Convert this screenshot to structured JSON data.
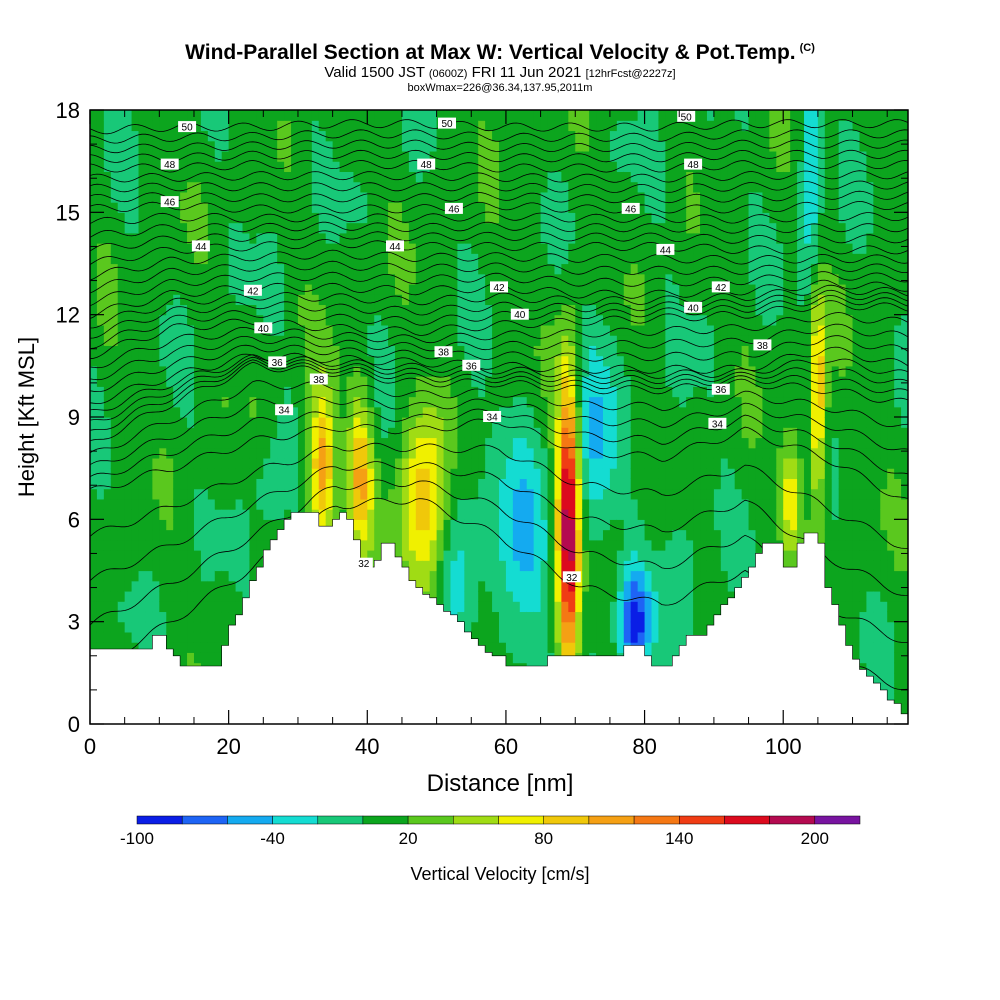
{
  "header": {
    "title": "Wind-Parallel Section at Max W: Vertical Velocity & Pot.Temp.",
    "copyright": "(C)",
    "subtitle_valid": "Valid 1500 JST",
    "subtitle_zulu": "(0600Z)",
    "subtitle_date": "FRI 11 Jun 2021",
    "subtitle_fcst": "[12hrFcst@2227z]",
    "subtitle_box": "boxWmax=226@36.34,137.95,2011m"
  },
  "chart_data": {
    "type": "heatmap",
    "xlabel": "Distance [nm]",
    "ylabel": "Height [Kft MSL]",
    "xlim": [
      0,
      118
    ],
    "ylim": [
      0,
      18
    ],
    "x_ticks": [
      0,
      20,
      40,
      60,
      80,
      100
    ],
    "y_ticks": [
      0,
      3,
      6,
      9,
      12,
      15,
      18
    ],
    "x_tick_labels": [
      "0",
      "20",
      "40",
      "60",
      "80",
      "100"
    ],
    "y_tick_labels": [
      "0",
      "3",
      "6",
      "9",
      "12",
      "15",
      "18"
    ],
    "terrain": {
      "x": [
        0,
        8,
        9,
        10,
        11,
        12,
        13,
        15,
        18,
        19,
        20,
        21,
        22,
        23,
        24,
        25,
        26,
        27,
        28,
        29,
        30,
        33,
        34,
        35,
        36,
        37,
        38,
        39,
        40,
        41,
        42,
        43,
        44,
        45,
        46,
        47,
        48,
        49,
        50,
        51,
        52,
        53,
        54,
        55,
        56,
        57,
        58,
        60,
        62,
        64,
        66,
        68,
        70,
        72,
        74,
        76,
        77,
        79,
        80,
        81,
        82,
        83,
        84,
        85,
        86,
        87,
        88,
        89,
        90,
        91,
        92,
        93,
        94,
        95,
        96,
        97,
        98,
        99,
        100,
        101,
        102,
        103,
        104,
        105,
        106,
        107,
        108,
        109,
        110,
        111,
        112,
        113,
        114,
        115,
        116,
        117,
        118
      ],
      "height_kft": [
        2.2,
        2.2,
        2.6,
        2.6,
        2.2,
        2.0,
        1.7,
        1.7,
        1.7,
        2.3,
        2.9,
        3.2,
        3.7,
        4.2,
        4.6,
        5.1,
        5.4,
        5.7,
        6.0,
        6.2,
        6.2,
        5.8,
        5.8,
        6.0,
        6.2,
        6.0,
        5.4,
        4.8,
        4.6,
        4.8,
        5.3,
        5.3,
        4.9,
        4.6,
        4.2,
        4.0,
        3.8,
        3.7,
        3.5,
        3.3,
        3.2,
        3.0,
        2.7,
        2.5,
        2.3,
        2.1,
        2.0,
        1.7,
        1.7,
        1.7,
        2.0,
        2.0,
        2.0,
        2.0,
        2.0,
        2.0,
        2.3,
        2.3,
        2.0,
        1.7,
        1.7,
        1.7,
        2.0,
        2.3,
        2.6,
        2.6,
        2.6,
        2.9,
        3.2,
        3.5,
        3.7,
        4.0,
        4.3,
        4.6,
        5.0,
        5.3,
        5.3,
        5.3,
        4.6,
        4.6,
        5.3,
        5.6,
        5.6,
        5.3,
        4.0,
        3.5,
        2.9,
        2.3,
        1.9,
        1.6,
        1.4,
        1.2,
        1.0,
        0.7,
        0.6,
        0.3,
        0.3
      ]
    },
    "colorbar": {
      "label": "Vertical Velocity [cm/s]",
      "tick_labels": [
        "-100",
        "-40",
        "20",
        "80",
        "140",
        "200"
      ],
      "tick_values": [
        -100,
        -40,
        20,
        80,
        140,
        200
      ],
      "bins": [
        -100,
        -80,
        -60,
        -40,
        -20,
        0,
        20,
        40,
        60,
        80,
        100,
        120,
        140,
        160,
        180,
        200,
        220
      ],
      "colors": [
        "#0a1ee6",
        "#1e64f5",
        "#14aaf0",
        "#14dcd2",
        "#18c878",
        "#0ca51e",
        "#5ac81e",
        "#a0dc14",
        "#f0f000",
        "#f0c80a",
        "#f5a014",
        "#f57814",
        "#f03c14",
        "#dc0a1e",
        "#b40a50",
        "#7814a0"
      ]
    },
    "w_blobs": [
      {
        "x": 33.5,
        "z": 7.6,
        "vx": 1.3,
        "vz": 1.6,
        "w": 110
      },
      {
        "x": 39,
        "z": 7.3,
        "vx": 1.2,
        "vz": 1.5,
        "w": 90
      },
      {
        "x": 48.5,
        "z": 6.4,
        "vx": 2.4,
        "vz": 2.0,
        "w": 90
      },
      {
        "x": 69,
        "z": 5.8,
        "vx": 1.1,
        "vz": 3.2,
        "w": 190
      },
      {
        "x": 105,
        "z": 9.5,
        "vx": 0.8,
        "vz": 2.2,
        "w": 100
      },
      {
        "x": 101,
        "z": 6.6,
        "vx": 1.0,
        "vz": 1.1,
        "w": 70
      },
      {
        "x": 53,
        "z": 5.2,
        "vx": 2.0,
        "vz": 2.5,
        "w": -35
      },
      {
        "x": 62,
        "z": 5.0,
        "vx": 2.6,
        "vz": 2.6,
        "w": -50
      },
      {
        "x": 78.5,
        "z": 3.0,
        "vx": 1.6,
        "vz": 1.1,
        "w": -95
      },
      {
        "x": 73,
        "z": 8.5,
        "vx": 2.0,
        "vz": 2.5,
        "w": -45
      },
      {
        "x": 104,
        "z": 16.5,
        "vx": 1.0,
        "vz": 2.5,
        "w": -50
      },
      {
        "x": 26,
        "z": 7.0,
        "vx": 1.5,
        "vz": 1.0,
        "w": -25
      },
      {
        "x": 85,
        "z": 5.0,
        "vx": 2.5,
        "vz": 2.5,
        "w": -15
      }
    ],
    "theta_contours": [
      {
        "label": "32",
        "theta": 32,
        "levels_kft": [
          1.6,
          3.0,
          4.6,
          6.4,
          6.6,
          5.5,
          4.0,
          3.5,
          4.5,
          2.0,
          1.0
        ],
        "labels": [
          {
            "x": 39.5,
            "z": 4.7
          },
          {
            "x": 69.5,
            "z": 4.3
          }
        ]
      },
      {
        "label": "34",
        "theta": 34,
        "levels_kft": [
          6.8,
          7.5,
          8.3,
          8.7,
          8.6,
          8.9,
          8.0,
          7.8,
          8.6,
          7.8,
          6.5
        ],
        "labels": [
          {
            "x": 28,
            "z": 9.2
          },
          {
            "x": 58,
            "z": 9.0
          },
          {
            "x": 90.5,
            "z": 8.8
          }
        ]
      },
      {
        "label": "36",
        "theta": 36,
        "levels_kft": [
          8.2,
          9.4,
          10.5,
          10.3,
          10.0,
          10.0,
          9.8,
          9.8,
          10.0,
          9.8,
          9.4
        ],
        "labels": [
          {
            "x": 27,
            "z": 10.6
          },
          {
            "x": 55,
            "z": 10.5
          },
          {
            "x": 91,
            "z": 9.8
          }
        ]
      },
      {
        "label": "38",
        "theta": 38,
        "levels_kft": [
          9.4,
          10.2,
          10.8,
          10.7,
          10.6,
          10.5,
          10.4,
          10.4,
          10.4,
          11.0,
          10.5
        ],
        "labels": [
          {
            "x": 33,
            "z": 10.1
          },
          {
            "x": 51,
            "z": 10.9
          },
          {
            "x": 97,
            "z": 11.1
          }
        ]
      },
      {
        "label": "40",
        "theta": 40,
        "levels_kft": [
          10.8,
          11.6,
          11.8,
          11.6,
          11.5,
          11.7,
          11.8,
          11.9,
          12.0,
          12.3,
          12.2
        ],
        "labels": [
          {
            "x": 25,
            "z": 11.6
          },
          {
            "x": 62,
            "z": 12.0
          },
          {
            "x": 87,
            "z": 12.2
          }
        ]
      },
      {
        "label": "42",
        "theta": 42,
        "levels_kft": [
          12.0,
          12.6,
          12.8,
          12.8,
          12.7,
          12.8,
          12.6,
          12.6,
          12.7,
          12.9,
          12.8
        ],
        "labels": [
          {
            "x": 23.5,
            "z": 12.7
          },
          {
            "x": 59,
            "z": 12.8
          },
          {
            "x": 91,
            "z": 12.8
          }
        ]
      },
      {
        "label": "44",
        "theta": 44,
        "levels_kft": [
          13.5,
          13.9,
          14.0,
          14.1,
          14.0,
          14.0,
          14.0,
          14.0,
          13.9,
          13.9,
          13.9
        ],
        "labels": [
          {
            "x": 16,
            "z": 14.0
          },
          {
            "x": 44,
            "z": 14.0
          },
          {
            "x": 83,
            "z": 13.9
          }
        ]
      },
      {
        "label": "46",
        "theta": 46,
        "levels_kft": [
          15.1,
          15.2,
          15.1,
          15.1,
          15.1,
          15.2,
          15.1,
          15.1,
          15.1,
          15.2,
          15.2
        ],
        "labels": [
          {
            "x": 11.5,
            "z": 15.3
          },
          {
            "x": 52.5,
            "z": 15.1
          },
          {
            "x": 78,
            "z": 15.1
          }
        ]
      },
      {
        "label": "48",
        "theta": 48,
        "levels_kft": [
          16.3,
          16.3,
          16.4,
          16.4,
          16.4,
          16.3,
          16.3,
          16.3,
          16.4,
          16.4,
          16.4
        ],
        "labels": [
          {
            "x": 11.5,
            "z": 16.4
          },
          {
            "x": 48.5,
            "z": 16.4
          },
          {
            "x": 87,
            "z": 16.4
          }
        ]
      },
      {
        "label": "50",
        "theta": 50,
        "levels_kft": [
          17.4,
          17.5,
          17.5,
          17.6,
          17.6,
          17.5,
          17.5,
          17.5,
          17.6,
          17.6,
          17.6
        ],
        "labels": [
          {
            "x": 14,
            "z": 17.5
          },
          {
            "x": 51.5,
            "z": 17.6
          },
          {
            "x": 86,
            "z": 17.8
          }
        ]
      }
    ]
  }
}
